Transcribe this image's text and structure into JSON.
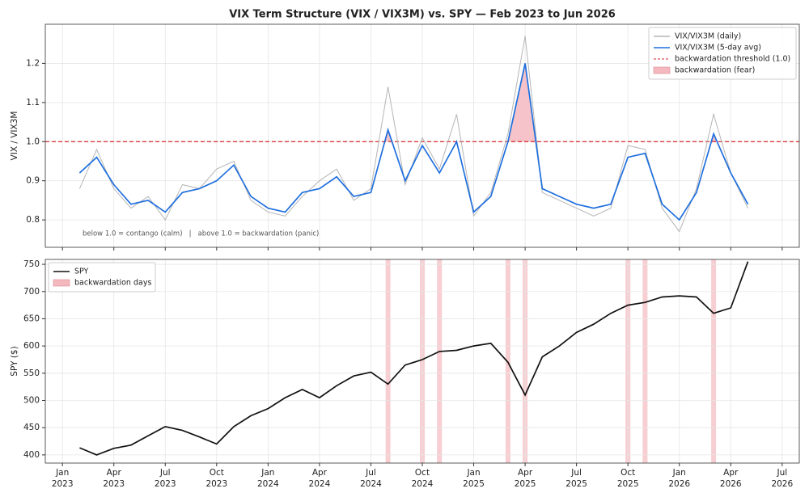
{
  "chart_data": [
    {
      "type": "line",
      "title": "VIX Term Structure (VIX / VIX3M) vs. SPY — Feb 2023 to Jun 2026",
      "ylabel": "VIX / VIX3M",
      "x": [
        "2023-02",
        "2023-03",
        "2023-04",
        "2023-05",
        "2023-06",
        "2023-07",
        "2023-08",
        "2023-09",
        "2023-10",
        "2023-11",
        "2023-12",
        "2024-01",
        "2024-02",
        "2024-03",
        "2024-04",
        "2024-05",
        "2024-06",
        "2024-07",
        "2024-08",
        "2024-09",
        "2024-10",
        "2024-11",
        "2024-12",
        "2025-01",
        "2025-02",
        "2025-03",
        "2025-04",
        "2025-05",
        "2025-06",
        "2025-07",
        "2025-08",
        "2025-09",
        "2025-10",
        "2025-11",
        "2025-12",
        "2026-01",
        "2026-02",
        "2026-03",
        "2026-04",
        "2026-05"
      ],
      "series": [
        {
          "name": "VIX/VIX3M (daily)",
          "color": "#b5b5b5",
          "values": [
            0.88,
            0.98,
            0.88,
            0.83,
            0.86,
            0.8,
            0.89,
            0.88,
            0.93,
            0.95,
            0.85,
            0.82,
            0.81,
            0.86,
            0.9,
            0.93,
            0.85,
            0.88,
            1.14,
            0.89,
            1.01,
            0.93,
            1.07,
            0.81,
            0.87,
            1.02,
            1.27,
            0.87,
            0.85,
            0.83,
            0.81,
            0.83,
            0.99,
            0.98,
            0.83,
            0.77,
            0.88,
            1.07,
            0.92,
            0.83
          ]
        },
        {
          "name": "VIX/VIX3M (5-day avg)",
          "color": "#1f6fde",
          "values": [
            0.92,
            0.96,
            0.89,
            0.84,
            0.85,
            0.82,
            0.87,
            0.88,
            0.9,
            0.94,
            0.86,
            0.83,
            0.82,
            0.87,
            0.88,
            0.91,
            0.86,
            0.87,
            1.03,
            0.9,
            0.99,
            0.92,
            1.0,
            0.82,
            0.86,
            1.0,
            1.2,
            0.88,
            0.86,
            0.84,
            0.83,
            0.84,
            0.96,
            0.97,
            0.84,
            0.8,
            0.87,
            1.02,
            0.92,
            0.84
          ]
        }
      ],
      "threshold": {
        "name": "backwardation threshold (1.0)",
        "value": 1,
        "color": "#d62728"
      },
      "fill": {
        "name": "backwardation (fear)",
        "color": "#f3b9bf"
      },
      "annotation": "below 1.0 = contango (calm)   |   above 1.0 = backwardation (panic)",
      "xlim": [
        "2022-12",
        "2026-08"
      ],
      "ylim": [
        0.73,
        1.3
      ],
      "yticks": [
        0.8,
        0.9,
        {
          "value": 1,
          "label": "1.0"
        },
        1.1,
        1.2
      ],
      "grid": true,
      "legend": "upper right"
    },
    {
      "type": "line",
      "ylabel": "SPY ($)",
      "x": [
        "2023-02",
        "2023-03",
        "2023-04",
        "2023-05",
        "2023-06",
        "2023-07",
        "2023-08",
        "2023-09",
        "2023-10",
        "2023-11",
        "2023-12",
        "2024-01",
        "2024-02",
        "2024-03",
        "2024-04",
        "2024-05",
        "2024-06",
        "2024-07",
        "2024-08",
        "2024-09",
        "2024-10",
        "2024-11",
        "2024-12",
        "2025-01",
        "2025-02",
        "2025-03",
        "2025-04",
        "2025-05",
        "2025-06",
        "2025-07",
        "2025-08",
        "2025-09",
        "2025-10",
        "2025-11",
        "2025-12",
        "2026-01",
        "2026-02",
        "2026-03",
        "2026-04",
        "2026-05"
      ],
      "series": [
        {
          "name": "SPY",
          "color": "#111111",
          "values": [
            413,
            400,
            412,
            418,
            435,
            452,
            445,
            433,
            420,
            452,
            472,
            485,
            505,
            520,
            505,
            527,
            545,
            552,
            530,
            565,
            575,
            590,
            592,
            600,
            605,
            570,
            510,
            580,
            600,
            625,
            640,
            660,
            675,
            680,
            690,
            692,
            690,
            660,
            670,
            755
          ]
        }
      ],
      "highlight": {
        "name": "backwardation days",
        "color": "#f3b9bf",
        "x": [
          "2024-08",
          "2024-10",
          "2024-11",
          "2025-03",
          "2025-04",
          "2025-10",
          "2025-11",
          "2026-03"
        ]
      },
      "xlim": [
        "2022-12",
        "2026-08"
      ],
      "ylim": [
        385,
        759
      ],
      "yticks": [
        400,
        450,
        500,
        550,
        600,
        650,
        700,
        750
      ],
      "xticks": [
        {
          "value": "2023-01",
          "label": "Jan\n2023"
        },
        {
          "value": "2023-04",
          "label": "Apr\n2023"
        },
        {
          "value": "2023-07",
          "label": "Jul\n2023"
        },
        {
          "value": "2023-10",
          "label": "Oct\n2023"
        },
        {
          "value": "2024-01",
          "label": "Jan\n2024"
        },
        {
          "value": "2024-04",
          "label": "Apr\n2024"
        },
        {
          "value": "2024-07",
          "label": "Jul\n2024"
        },
        {
          "value": "2024-10",
          "label": "Oct\n2024"
        },
        {
          "value": "2025-01",
          "label": "Jan\n2025"
        },
        {
          "value": "2025-04",
          "label": "Apr\n2025"
        },
        {
          "value": "2025-07",
          "label": "Jul\n2025"
        },
        {
          "value": "2025-10",
          "label": "Oct\n2025"
        },
        {
          "value": "2026-01",
          "label": "Jan\n2026"
        },
        {
          "value": "2026-04",
          "label": "Apr\n2026"
        },
        {
          "value": "2026-07",
          "label": "Jul\n2026"
        }
      ],
      "grid": true,
      "legend": "upper left"
    }
  ]
}
